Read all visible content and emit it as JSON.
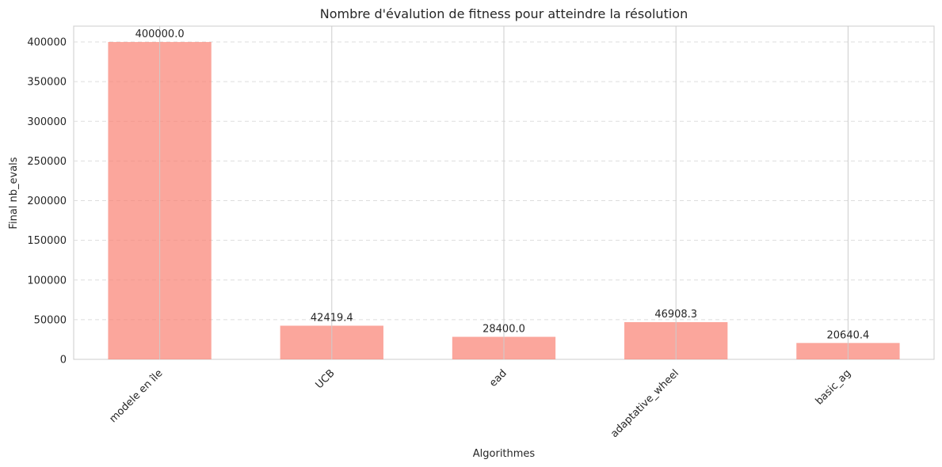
{
  "chart_data": {
    "type": "bar",
    "title": "Nombre d'évalution de fitness pour atteindre la résolution",
    "xlabel": "Algorithmes",
    "ylabel": "Final nb_evals",
    "categories": [
      "modele en île",
      "UCB",
      "ead",
      "adaptative_wheel",
      "basic_ag"
    ],
    "values": [
      400000.0,
      42419.4,
      28400.0,
      46908.3,
      20640.4
    ],
    "data_labels": [
      "400000.0",
      "42419.4",
      "28400.0",
      "46908.3",
      "20640.4"
    ],
    "ylim": [
      0,
      420000
    ],
    "yticks": [
      0,
      50000,
      100000,
      150000,
      200000,
      250000,
      300000,
      350000,
      400000
    ],
    "ytick_labels": [
      "0",
      "50000",
      "100000",
      "150000",
      "200000",
      "250000",
      "300000",
      "350000",
      "400000"
    ],
    "grid": true,
    "bar_color": "#fa8072",
    "gridline_color": "#cccccc",
    "text_color": "#262626"
  }
}
